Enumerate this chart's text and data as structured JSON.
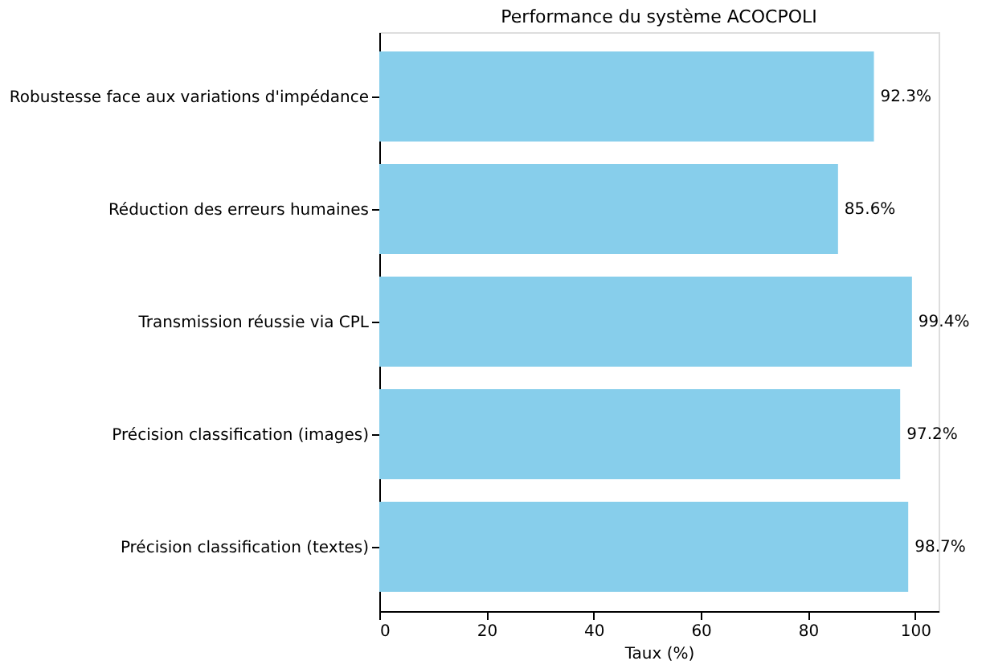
{
  "chart_data": {
    "type": "bar",
    "orientation": "horizontal",
    "title": "Performance du système ACOCPOLI",
    "xlabel": "Taux (%)",
    "categories": [
      "Robustesse face aux variations d'impédance",
      "Réduction des erreurs humaines",
      "Transmission réussie via CPL",
      "Précision classification (images)",
      "Précision classification (textes)"
    ],
    "values": [
      92.3,
      85.6,
      99.4,
      97.2,
      98.7
    ],
    "color": "#87ceeb",
    "value_labels": [
      "92.3%",
      "85.6%",
      "99.4%",
      "97.2%",
      "98.7%"
    ],
    "xlim": [
      0,
      104.37
    ],
    "xticks": [
      0,
      20,
      40,
      60,
      80,
      100
    ],
    "grid": false
  }
}
